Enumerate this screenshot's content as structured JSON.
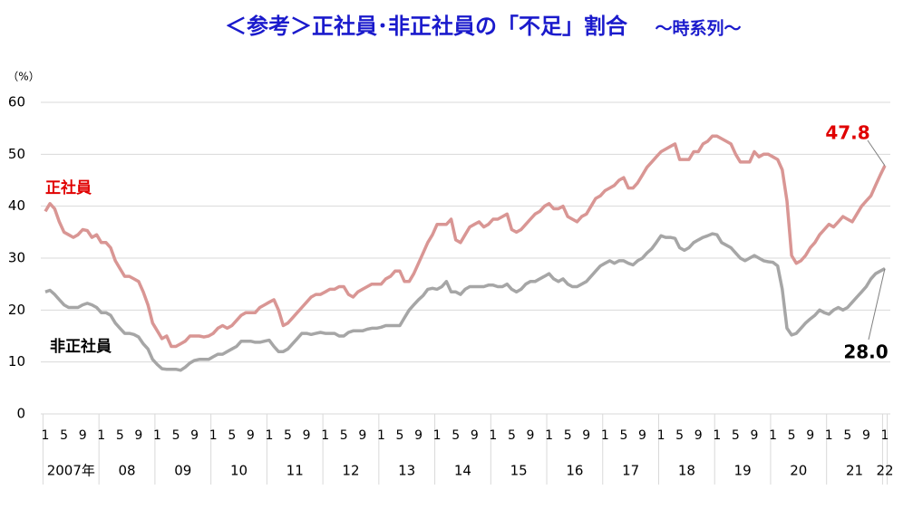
{
  "chart_data": {
    "type": "line",
    "title": "＜参考＞正社員･非正社員の「不足」割合",
    "subtitle": "～時系列～",
    "y_unit": "（%）",
    "categories": [
      "1",
      null,
      null,
      null,
      "5",
      null,
      null,
      null,
      "9",
      null,
      null,
      null,
      "1",
      null,
      null,
      null,
      "5",
      null,
      null,
      null,
      "9",
      null,
      null,
      null,
      "1",
      null,
      null,
      null,
      "5",
      null,
      null,
      null,
      "9",
      null,
      null,
      null,
      "1",
      null,
      null,
      null,
      "5",
      null,
      null,
      null,
      "9",
      null,
      null,
      null,
      "1",
      null,
      null,
      null,
      "5",
      null,
      null,
      null,
      "9",
      null,
      null,
      null,
      "1",
      null,
      null,
      null,
      "5",
      null,
      null,
      null,
      "9",
      null,
      null,
      null,
      "1",
      null,
      null,
      null,
      "5",
      null,
      null,
      null,
      "9",
      null,
      null,
      null,
      "1",
      null,
      null,
      null,
      "5",
      null,
      null,
      null,
      "9",
      null,
      null,
      null,
      "1",
      null,
      null,
      null,
      "5",
      null,
      null,
      null,
      "9",
      null,
      null,
      null,
      "1",
      null,
      null,
      null,
      "5",
      null,
      null,
      null,
      "9",
      null,
      null,
      null,
      "1",
      null,
      null,
      null,
      "5",
      null,
      null,
      null,
      "9",
      null,
      null,
      null,
      "1",
      null,
      null,
      null,
      "5",
      null,
      null,
      null,
      "9",
      null,
      null,
      null,
      "1",
      null,
      null,
      null,
      "5",
      null,
      null,
      null,
      "9",
      null,
      null,
      null,
      "1",
      null,
      null,
      null,
      "5",
      null,
      null,
      null,
      "9",
      null,
      null,
      null,
      "1",
      null,
      null,
      null,
      "5",
      null,
      null,
      null,
      "9",
      null,
      null,
      null,
      "1"
    ],
    "year_labels": [
      "2007年",
      "08",
      "09",
      "10",
      "11",
      "12",
      "13",
      "14",
      "15",
      "16",
      "17",
      "18",
      "19",
      "20",
      "21",
      "22"
    ],
    "series": [
      {
        "name": "正社員",
        "color": "#d99694",
        "label_color": "#e00000",
        "values": [
          39,
          40.5,
          39.5,
          37,
          35,
          34.5,
          34,
          34.5,
          35.5,
          35.3,
          34,
          34.5,
          33,
          33,
          32,
          29.5,
          28,
          26.5,
          26.5,
          26,
          25.5,
          23.5,
          21,
          17.5,
          16,
          14.5,
          15,
          13,
          13,
          13.5,
          14,
          15,
          15,
          15,
          14.8,
          15,
          15.5,
          16.5,
          17,
          16.5,
          17,
          18,
          19,
          19.5,
          19.5,
          19.5,
          20.5,
          21,
          21.5,
          22,
          20,
          17,
          17.5,
          18.5,
          19.5,
          20.5,
          21.5,
          22.5,
          23,
          23,
          23.5,
          24,
          24,
          24.5,
          24.5,
          23,
          22.5,
          23.5,
          24,
          24.5,
          25,
          25,
          25,
          26,
          26.5,
          27.5,
          27.5,
          25.5,
          25.5,
          27,
          29,
          31,
          33,
          34.5,
          36.5,
          36.5,
          36.5,
          37.5,
          33.5,
          33,
          34.5,
          36,
          36.5,
          37,
          36,
          36.5,
          37.5,
          37.5,
          38,
          38.5,
          35.5,
          35,
          35.5,
          36.5,
          37.5,
          38.5,
          39,
          40,
          40.5,
          39.5,
          39.5,
          40,
          38,
          37.5,
          37,
          38,
          38.5,
          40,
          41.5,
          42,
          43,
          43.5,
          44,
          45,
          45.5,
          43.5,
          43.5,
          44.5,
          46,
          47.5,
          48.5,
          49.5,
          50.5,
          51,
          51.5,
          52,
          49,
          49,
          49,
          50.5,
          50.5,
          52,
          52.5,
          53.5,
          53.5,
          53,
          52.5,
          52,
          50,
          48.5,
          48.5,
          48.5,
          50.5,
          49.5,
          50,
          50,
          49.5,
          49,
          47,
          41,
          30.5,
          29,
          29.5,
          30.5,
          32,
          33,
          34.5,
          35.5,
          36.5,
          36,
          37,
          38,
          37.5,
          37,
          38.5,
          40,
          41,
          42,
          44,
          46,
          47.8
        ],
        "value_labels": [
          null,
          null,
          null,
          null,
          null,
          null,
          null,
          null,
          null,
          null,
          null,
          null,
          null,
          null,
          null,
          null,
          null,
          null,
          null,
          null,
          null,
          null,
          null,
          null,
          null,
          null,
          null,
          null,
          null,
          null,
          null,
          null,
          null,
          null,
          null,
          null,
          null,
          null,
          null,
          null,
          null,
          null,
          null,
          null,
          null,
          null,
          null,
          null,
          null,
          null,
          null,
          null,
          null,
          null,
          null,
          null,
          null,
          null,
          null,
          null,
          null,
          null,
          null,
          null,
          null,
          null,
          null,
          null,
          null,
          null,
          null,
          null,
          null,
          null,
          null,
          null,
          null,
          null,
          null,
          null,
          null,
          null,
          null,
          null,
          null,
          null,
          null,
          null,
          null,
          null,
          null,
          null,
          null,
          null,
          null,
          null,
          null,
          null,
          null,
          null,
          null,
          null,
          null,
          null,
          null,
          null,
          null,
          null,
          null,
          null,
          null,
          null,
          null,
          null,
          null,
          null,
          null,
          null,
          null,
          null,
          null,
          null,
          null,
          null,
          null,
          null,
          null,
          null,
          null,
          null,
          null,
          null,
          null,
          null,
          null,
          null,
          null,
          null,
          null,
          null,
          null,
          null,
          null,
          null,
          null,
          null,
          null,
          null,
          null,
          null,
          null,
          null,
          null,
          null,
          null,
          null,
          null,
          null,
          null,
          null,
          null,
          null,
          null,
          null,
          null,
          null,
          null,
          null,
          null,
          null,
          null,
          null,
          null,
          null,
          null,
          null,
          null,
          null,
          null,
          null,
          "47.8"
        ]
      },
      {
        "name": "非正社員",
        "color": "#a6a6a6",
        "label_color": "#000000",
        "values": [
          23.5,
          23.8,
          23,
          22,
          21,
          20.5,
          20.5,
          20.5,
          21,
          21.3,
          21,
          20.5,
          19.5,
          19.5,
          19,
          17.5,
          16.5,
          15.5,
          15.5,
          15.3,
          14.8,
          13.5,
          12.5,
          10.5,
          9.5,
          8.7,
          8.6,
          8.6,
          8.6,
          8.4,
          9,
          9.8,
          10.3,
          10.5,
          10.5,
          10.5,
          11,
          11.5,
          11.5,
          12,
          12.5,
          13,
          14,
          14,
          14,
          13.8,
          13.8,
          14,
          14.2,
          13,
          12,
          12,
          12.5,
          13.5,
          14.5,
          15.5,
          15.5,
          15.3,
          15.5,
          15.7,
          15.5,
          15.5,
          15.5,
          15,
          15,
          15.7,
          16,
          16,
          16,
          16.3,
          16.5,
          16.5,
          16.7,
          17,
          17,
          17,
          17,
          18.5,
          20,
          21,
          22,
          22.8,
          24,
          24.2,
          24,
          24.5,
          25.5,
          23.5,
          23.5,
          23,
          24,
          24.5,
          24.5,
          24.5,
          24.5,
          24.8,
          24.8,
          24.5,
          24.5,
          25,
          24,
          23.5,
          24,
          25,
          25.5,
          25.5,
          26,
          26.5,
          27,
          26,
          25.5,
          26,
          25,
          24.5,
          24.5,
          25,
          25.5,
          26.5,
          27.5,
          28.5,
          29,
          29.5,
          29,
          29.5,
          29.5,
          29,
          28.7,
          29.5,
          30,
          31,
          31.8,
          33,
          34.3,
          34,
          34,
          33.8,
          32,
          31.5,
          32,
          33,
          33.5,
          34,
          34.3,
          34.7,
          34.5,
          33,
          32.5,
          32,
          31,
          30,
          29.5,
          30,
          30.5,
          30,
          29.5,
          29.3,
          29.2,
          28.5,
          24,
          16.5,
          15.2,
          15.5,
          16.5,
          17.5,
          18.3,
          19,
          20,
          19.5,
          19.2,
          20,
          20.5,
          20,
          20.5,
          21.5,
          22.5,
          23.5,
          24.5,
          26,
          27,
          27.5,
          28
        ],
        "value_labels": [
          null,
          null,
          null,
          null,
          null,
          null,
          null,
          null,
          null,
          null,
          null,
          null,
          null,
          null,
          null,
          null,
          null,
          null,
          null,
          null,
          null,
          null,
          null,
          null,
          null,
          null,
          null,
          null,
          null,
          null,
          null,
          null,
          null,
          null,
          null,
          null,
          null,
          null,
          null,
          null,
          null,
          null,
          null,
          null,
          null,
          null,
          null,
          null,
          null,
          null,
          null,
          null,
          null,
          null,
          null,
          null,
          null,
          null,
          null,
          null,
          null,
          null,
          null,
          null,
          null,
          null,
          null,
          null,
          null,
          null,
          null,
          null,
          null,
          null,
          null,
          null,
          null,
          null,
          null,
          null,
          null,
          null,
          null,
          null,
          null,
          null,
          null,
          null,
          null,
          null,
          null,
          null,
          null,
          null,
          null,
          null,
          null,
          null,
          null,
          null,
          null,
          null,
          null,
          null,
          null,
          null,
          null,
          null,
          null,
          null,
          null,
          null,
          null,
          null,
          null,
          null,
          null,
          null,
          null,
          null,
          null,
          null,
          null,
          null,
          null,
          null,
          null,
          null,
          null,
          null,
          null,
          null,
          null,
          null,
          null,
          null,
          null,
          null,
          null,
          null,
          null,
          null,
          null,
          null,
          null,
          null,
          null,
          null,
          null,
          null,
          null,
          null,
          null,
          null,
          null,
          null,
          null,
          null,
          null,
          null,
          null,
          null,
          null,
          null,
          null,
          null,
          null,
          null,
          null,
          null,
          null,
          null,
          null,
          null,
          null,
          null,
          null,
          null,
          null,
          null,
          "28.0"
        ]
      }
    ],
    "ylim": [
      0,
      60
    ],
    "yticks": [
      0,
      10,
      20,
      30,
      40,
      50,
      60
    ],
    "grid": true
  }
}
